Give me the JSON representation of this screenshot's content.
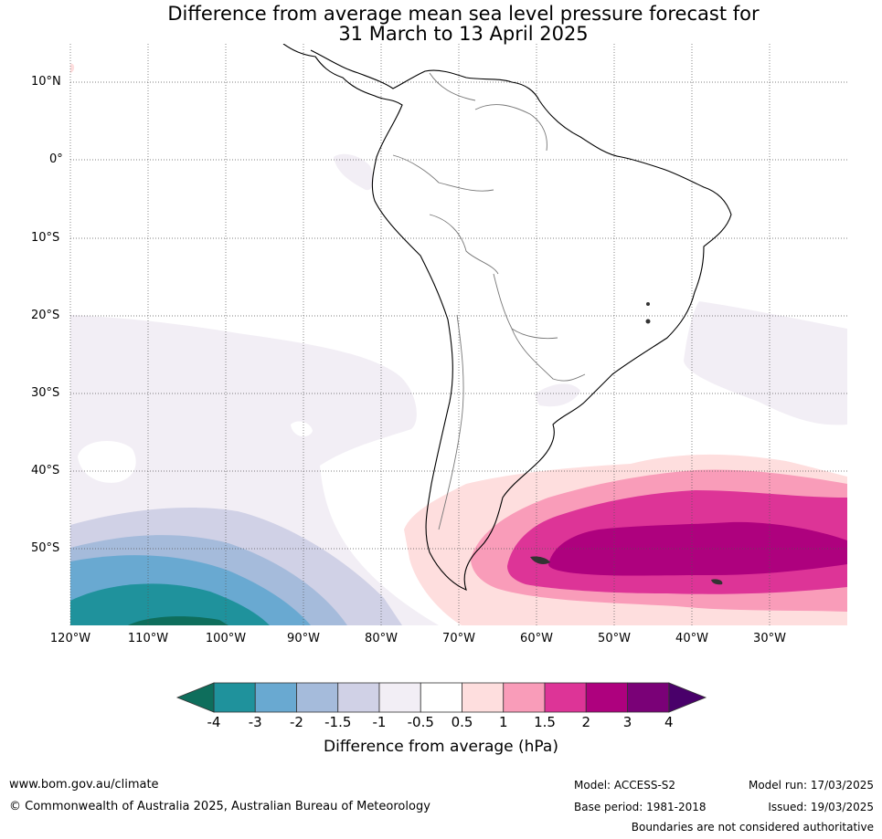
{
  "title": {
    "line1": "Difference from average mean sea level pressure forecast for",
    "line2": "31 March to 13 April 2025"
  },
  "map": {
    "latitude_labels": [
      "10°N",
      "0°",
      "10°S",
      "20°S",
      "30°S",
      "40°S",
      "50°S"
    ],
    "longitude_labels": [
      "120°W",
      "110°W",
      "100°W",
      "90°W",
      "80°W",
      "70°W",
      "60°W",
      "50°W",
      "40°W",
      "30°W"
    ],
    "region": "South America",
    "projection": "Mercator",
    "features": {
      "positive_anomaly_center": "South Atlantic, about 50°S 45°W, greater than 2 hPa",
      "negative_anomaly_center": "Southeast Pacific, about 55°S 110°W, less than -3 hPa"
    }
  },
  "colorbar": {
    "label": "Difference from average (hPa)",
    "ticks": [
      "-4",
      "-3",
      "-2",
      "-1.5",
      "-1",
      "-0.5",
      "0.5",
      "1",
      "1.5",
      "2",
      "3",
      "4"
    ],
    "colors": [
      "#0e6e5c",
      "#1f929c",
      "#69a9d1",
      "#a5bbdb",
      "#d0d1e6",
      "#f2eef5",
      "#ffffff",
      "#fedede",
      "#f99cb9",
      "#dd3497",
      "#ae017e",
      "#7a0177",
      "#49006a"
    ]
  },
  "footer": {
    "website": "www.bom.gov.au/climate",
    "copyright": "© Commonwealth of Australia 2025, Australian Bureau of Meteorology",
    "model": "Model: ACCESS-S2",
    "base_period": "Base period: 1981-2018",
    "model_run": "Model run: 17/03/2025",
    "issued": "Issued: 19/03/2025",
    "disclaimer": "Boundaries are not considered authoritative"
  }
}
